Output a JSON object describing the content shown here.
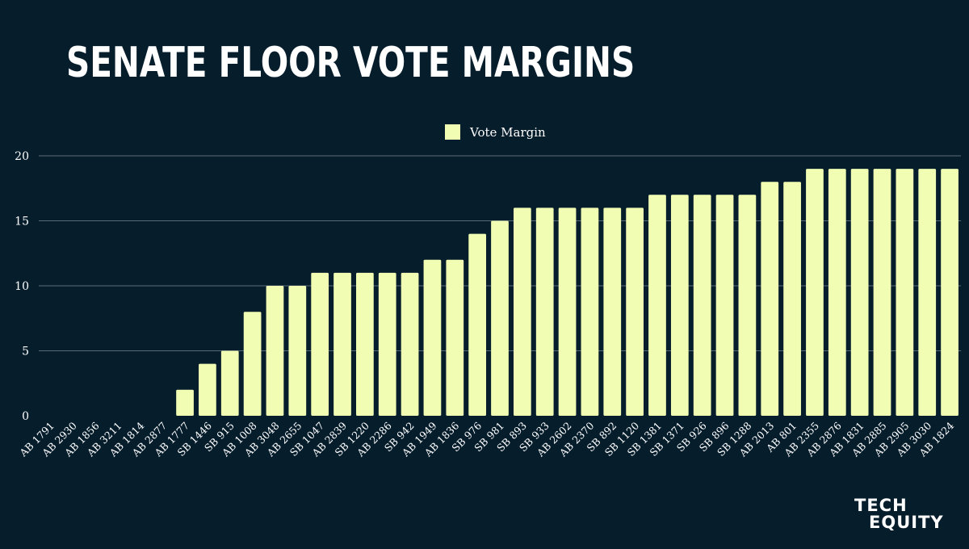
{
  "title": "SENATE FLOOR VOTE MARGINS",
  "logo": {
    "line1": "TECH",
    "line2": "EQUITY"
  },
  "colors": {
    "background": "#061d2c",
    "bar": "#f2fdb4",
    "grid": "#5a6b78",
    "text": "#ffffff"
  },
  "chart_data": {
    "type": "bar",
    "title": "SENATE FLOOR VOTE MARGINS",
    "xlabel": "",
    "ylabel": "",
    "ylim": [
      0,
      20
    ],
    "yticks": [
      0,
      5,
      10,
      15,
      20
    ],
    "grid": true,
    "legend": "top-center",
    "categories": [
      "AB 1791",
      "AB 2930",
      "AB 1856",
      "AB 3211",
      "AB 1814",
      "AB 2877",
      "AB 1777",
      "SB 1446",
      "SB 915",
      "AB 1008",
      "AB 3048",
      "AB 2655",
      "SB 1047",
      "AB 2839",
      "SB 1220",
      "AB 2286",
      "SB 942",
      "AB 1949",
      "AB 1836",
      "SB 976",
      "SB 981",
      "SB 893",
      "SB 933",
      "AB 2602",
      "AB 2370",
      "SB 892",
      "SB 1120",
      "SB 1381",
      "SB 1371",
      "SB 926",
      "SB 896",
      "SB 1288",
      "AB 2013",
      "AB 801",
      "AB 2355",
      "AB 2876",
      "AB 1831",
      "AB 2885",
      "AB 2905",
      "AB 3030",
      "AB 1824"
    ],
    "series": [
      {
        "name": "Vote Margin",
        "color": "#f2fdb4",
        "values": [
          0,
          0,
          0,
          0,
          0,
          0,
          2,
          4,
          5,
          8,
          10,
          10,
          11,
          11,
          11,
          11,
          11,
          12,
          12,
          14,
          15,
          16,
          16,
          16,
          16,
          16,
          16,
          17,
          17,
          17,
          17,
          17,
          18,
          18,
          19,
          19,
          19,
          19,
          19,
          19,
          19
        ]
      }
    ]
  }
}
